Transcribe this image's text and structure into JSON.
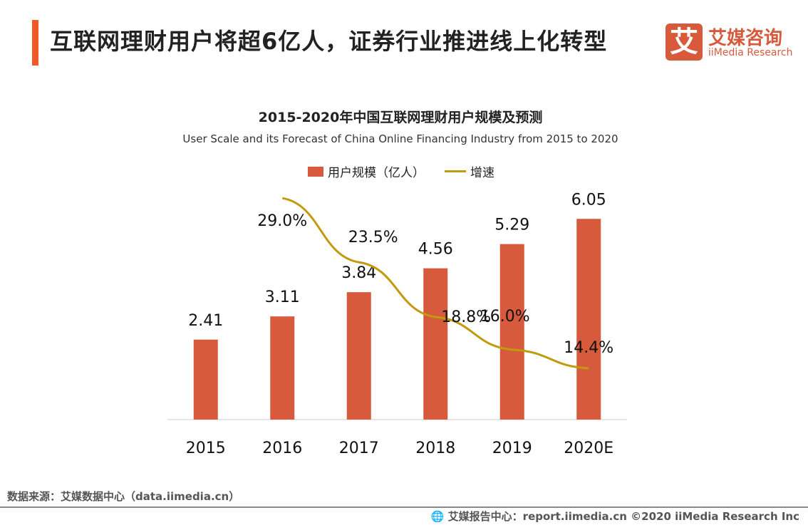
{
  "header": {
    "title": "互联网理财用户将超6亿人，证券行业推进线上化转型",
    "accent_color": "#f05a28"
  },
  "logo": {
    "mark": "艾",
    "cn": "艾媒咨询",
    "en": "iiMedia Research"
  },
  "chart_data": {
    "type": "bar+line",
    "title": "2015-2020年中国互联网理财用户规模及预测",
    "subtitle": "User Scale and its Forecast of China Online Financing Industry from 2015 to 2020",
    "categories": [
      "2015",
      "2016",
      "2017",
      "2018",
      "2019",
      "2020E"
    ],
    "series": [
      {
        "name": "用户规模（亿人）",
        "type": "bar",
        "color": "#d65a3b",
        "values": [
          2.41,
          3.11,
          3.84,
          4.56,
          5.29,
          6.05
        ],
        "labels": [
          "2.41",
          "3.11",
          "3.84",
          "4.56",
          "5.29",
          "6.05"
        ]
      },
      {
        "name": "增速",
        "type": "line",
        "color": "#c19a0e",
        "values": [
          null,
          29.0,
          23.5,
          18.8,
          16.0,
          14.4
        ],
        "labels": [
          "",
          "29.0%",
          "23.5%",
          "18.8%",
          "16.0%",
          "14.4%"
        ]
      }
    ],
    "ylim": [
      0,
      6.85
    ],
    "y2lim": [
      10,
      29.5
    ],
    "grid": false,
    "legend": "top"
  },
  "footer": {
    "source": "数据来源：艾媒数据中心（data.iimedia.cn）",
    "credit": "艾媒报告中心：report.iimedia.cn ©2020 iiMedia Research Inc"
  }
}
